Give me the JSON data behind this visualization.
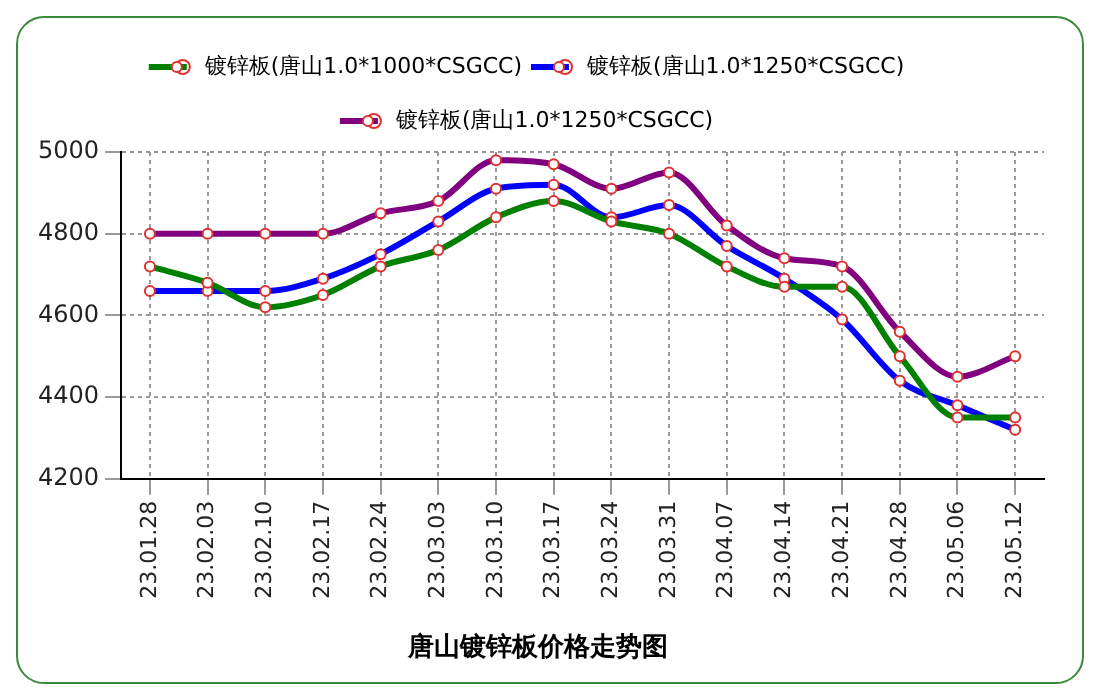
{
  "chart_data": {
    "type": "line",
    "title": "唐山镀锌板价格走势图",
    "categories": [
      "23.01.28",
      "23.02.03",
      "23.02.10",
      "23.02.17",
      "23.02.24",
      "23.03.03",
      "23.03.10",
      "23.03.17",
      "23.03.24",
      "23.03.31",
      "23.04.07",
      "23.04.14",
      "23.04.21",
      "23.04.28",
      "23.05.06",
      "23.05.12"
    ],
    "series": [
      {
        "name": "镀锌板(唐山1.0*1000*CSGCC)",
        "color": "#008000",
        "values": [
          4720,
          4680,
          4620,
          4650,
          4720,
          4760,
          4840,
          4880,
          4830,
          4800,
          4720,
          4670,
          4670,
          4500,
          4350,
          4350
        ]
      },
      {
        "name": "镀锌板(唐山1.0*1250*CSGCC)",
        "color": "#0000ff",
        "values": [
          4660,
          4660,
          4660,
          4690,
          4750,
          4830,
          4910,
          4920,
          4840,
          4870,
          4770,
          4690,
          4590,
          4440,
          4380,
          4320
        ]
      },
      {
        "name": "镀锌板(唐山1.0*1250*CSGCC)",
        "color": "#800080",
        "values": [
          4800,
          4800,
          4800,
          4800,
          4850,
          4880,
          4980,
          4970,
          4910,
          4950,
          4820,
          4740,
          4720,
          4560,
          4450,
          4500
        ]
      }
    ],
    "ylim": [
      4200,
      5000
    ],
    "yticks": [
      4200,
      4400,
      4600,
      4800,
      5000
    ],
    "grid": true,
    "legend": "top",
    "marker": "circle",
    "line_style": "solid"
  }
}
